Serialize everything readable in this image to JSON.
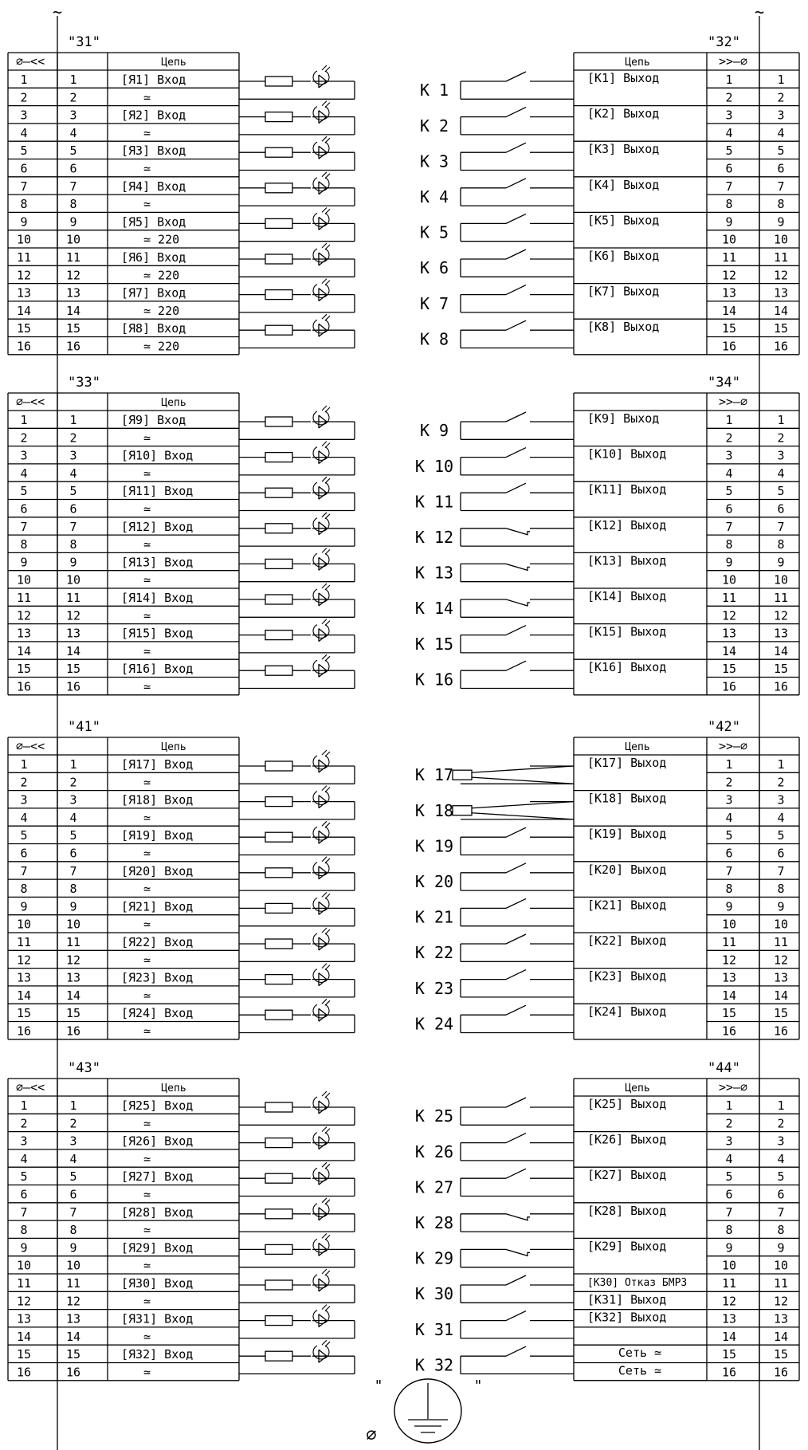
{
  "top_marks": [
    "~",
    "~"
  ],
  "cell_header": "Цепь",
  "left_header_symbol": "∅—<<",
  "right_header_symbol": ">>—∅",
  "ground": {
    "quote_left": "\"",
    "quote_right": "\"",
    "symbol": "∅"
  },
  "sections": [
    {
      "left_connector": "\"31\"",
      "right_connector": "\"32\"",
      "left_has_header_label": true,
      "right_has_header_label": true,
      "left_rows": [
        [
          "1",
          "1",
          "[Я1] Вход"
        ],
        [
          "2",
          "2",
          "≃"
        ],
        [
          "3",
          "3",
          "[Я2] Вход"
        ],
        [
          "4",
          "4",
          "≃"
        ],
        [
          "5",
          "5",
          "[Я3] Вход"
        ],
        [
          "6",
          "6",
          "≃"
        ],
        [
          "7",
          "7",
          "[Я4] Вход"
        ],
        [
          "8",
          "8",
          "≃"
        ],
        [
          "9",
          "9",
          "[Я5] Вход"
        ],
        [
          "10",
          "10",
          "≃ 220"
        ],
        [
          "11",
          "11",
          "[Я6] Вход"
        ],
        [
          "12",
          "12",
          "≃ 220"
        ],
        [
          "13",
          "13",
          "[Я7] Вход"
        ],
        [
          "14",
          "14",
          "≃ 220"
        ],
        [
          "15",
          "15",
          "[Я8] Вход"
        ],
        [
          "16",
          "16",
          "≃ 220"
        ]
      ],
      "right_rows": [
        [
          "[K1] Выход",
          "1",
          "1"
        ],
        [
          "",
          "2",
          "2"
        ],
        [
          "[K2] Выход",
          "3",
          "3"
        ],
        [
          "",
          "4",
          "4"
        ],
        [
          "[K3] Выход",
          "5",
          "5"
        ],
        [
          "",
          "6",
          "6"
        ],
        [
          "[K4] Выход",
          "7",
          "7"
        ],
        [
          "",
          "8",
          "8"
        ],
        [
          "[K5] Выход",
          "9",
          "9"
        ],
        [
          "",
          "10",
          "10"
        ],
        [
          "[K6] Выход",
          "11",
          "11"
        ],
        [
          "",
          "12",
          "12"
        ],
        [
          "[K7] Выход",
          "13",
          "13"
        ],
        [
          "",
          "14",
          "14"
        ],
        [
          "[K8] Выход",
          "15",
          "15"
        ],
        [
          "",
          "16",
          "16"
        ]
      ],
      "relays": [
        {
          "label": "К 1",
          "type": "no"
        },
        {
          "label": "К 2",
          "type": "no"
        },
        {
          "label": "К 3",
          "type": "no"
        },
        {
          "label": "К 4",
          "type": "no"
        },
        {
          "label": "К 5",
          "type": "no"
        },
        {
          "label": "К 6",
          "type": "no"
        },
        {
          "label": "К 7",
          "type": "no"
        },
        {
          "label": "К 8",
          "type": "no"
        }
      ]
    },
    {
      "left_connector": "\"33\"",
      "right_connector": "\"34\"",
      "left_has_header_label": true,
      "right_has_header_label": false,
      "left_rows": [
        [
          "1",
          "1",
          "[Я9] Вход"
        ],
        [
          "2",
          "2",
          "≃"
        ],
        [
          "3",
          "3",
          "[Я10] Вход"
        ],
        [
          "4",
          "4",
          "≃"
        ],
        [
          "5",
          "5",
          "[Я11] Вход"
        ],
        [
          "6",
          "6",
          "≃"
        ],
        [
          "7",
          "7",
          "[Я12] Вход"
        ],
        [
          "8",
          "8",
          "≃"
        ],
        [
          "9",
          "9",
          "[Я13] Вход"
        ],
        [
          "10",
          "10",
          "≃"
        ],
        [
          "11",
          "11",
          "[Я14] Вход"
        ],
        [
          "12",
          "12",
          "≃"
        ],
        [
          "13",
          "13",
          "[Я15] Вход"
        ],
        [
          "14",
          "14",
          "≃"
        ],
        [
          "15",
          "15",
          "[Я16] Вход"
        ],
        [
          "16",
          "16",
          "≃"
        ]
      ],
      "right_rows": [
        [
          "[K9] Выход",
          "1",
          "1"
        ],
        [
          "",
          "2",
          "2"
        ],
        [
          "[K10] Выход",
          "3",
          "3"
        ],
        [
          "",
          "4",
          "4"
        ],
        [
          "[K11] Выход",
          "5",
          "5"
        ],
        [
          "",
          "6",
          "6"
        ],
        [
          "[K12] Выход",
          "7",
          "7"
        ],
        [
          "",
          "8",
          "8"
        ],
        [
          "[K13] Выход",
          "9",
          "9"
        ],
        [
          "",
          "10",
          "10"
        ],
        [
          "[K14] Выход",
          "11",
          "11"
        ],
        [
          "",
          "12",
          "12"
        ],
        [
          "[K15] Выход",
          "13",
          "13"
        ],
        [
          "",
          "14",
          "14"
        ],
        [
          "[K16] Выход",
          "15",
          "15"
        ],
        [
          "",
          "16",
          "16"
        ]
      ],
      "relays": [
        {
          "label": "К 9",
          "type": "no"
        },
        {
          "label": "К 10",
          "type": "no"
        },
        {
          "label": "К 11",
          "type": "no"
        },
        {
          "label": "К 12",
          "type": "nc"
        },
        {
          "label": "К 13",
          "type": "nc"
        },
        {
          "label": "К 14",
          "type": "nc"
        },
        {
          "label": "К 15",
          "type": "no"
        },
        {
          "label": "К 16",
          "type": "no"
        }
      ]
    },
    {
      "left_connector": "\"41\"",
      "right_connector": "\"42\"",
      "left_has_header_label": true,
      "right_has_header_label": true,
      "left_rows": [
        [
          "1",
          "1",
          "[Я17] Вход"
        ],
        [
          "2",
          "2",
          "≃"
        ],
        [
          "3",
          "3",
          "[Я18] Вход"
        ],
        [
          "4",
          "4",
          "≃"
        ],
        [
          "5",
          "5",
          "[Я19] Вход"
        ],
        [
          "6",
          "6",
          "≃"
        ],
        [
          "7",
          "7",
          "[Я20] Вход"
        ],
        [
          "8",
          "8",
          "≃"
        ],
        [
          "9",
          "9",
          "[Я21] Вход"
        ],
        [
          "10",
          "10",
          "≃"
        ],
        [
          "11",
          "11",
          "[Я22] Вход"
        ],
        [
          "12",
          "12",
          "≃"
        ],
        [
          "13",
          "13",
          "[Я23] Вход"
        ],
        [
          "14",
          "14",
          "≃"
        ],
        [
          "15",
          "15",
          "[Я24] Вход"
        ],
        [
          "16",
          "16",
          "≃"
        ]
      ],
      "right_rows": [
        [
          "[K17] Выход",
          "1",
          "1"
        ],
        [
          "",
          "2",
          "2"
        ],
        [
          "[K18] Выход",
          "3",
          "3"
        ],
        [
          "",
          "4",
          "4"
        ],
        [
          "[K19] Выход",
          "5",
          "5"
        ],
        [
          "",
          "6",
          "6"
        ],
        [
          "[K20] Выход",
          "7",
          "7"
        ],
        [
          "",
          "8",
          "8"
        ],
        [
          "[K21] Выход",
          "9",
          "9"
        ],
        [
          "",
          "10",
          "10"
        ],
        [
          "[K22] Выход",
          "11",
          "11"
        ],
        [
          "",
          "12",
          "12"
        ],
        [
          "[K23] Выход",
          "13",
          "13"
        ],
        [
          "",
          "14",
          "14"
        ],
        [
          "[K24] Выход",
          "15",
          "15"
        ],
        [
          "",
          "16",
          "16"
        ]
      ],
      "relays": [
        {
          "label": "К 17",
          "type": "coil"
        },
        {
          "label": "К 18",
          "type": "coil"
        },
        {
          "label": "К 19",
          "type": "no"
        },
        {
          "label": "К 20",
          "type": "no"
        },
        {
          "label": "К 21",
          "type": "no"
        },
        {
          "label": "К 22",
          "type": "no"
        },
        {
          "label": "К 23",
          "type": "no"
        },
        {
          "label": "К 24",
          "type": "no"
        }
      ]
    },
    {
      "left_connector": "\"43\"",
      "right_connector": "\"44\"",
      "left_has_header_label": true,
      "right_has_header_label": true,
      "left_rows": [
        [
          "1",
          "1",
          "[Я25] Вход"
        ],
        [
          "2",
          "2",
          "≃"
        ],
        [
          "3",
          "3",
          "[Я26] Вход"
        ],
        [
          "4",
          "4",
          "≃"
        ],
        [
          "5",
          "5",
          "[Я27] Вход"
        ],
        [
          "6",
          "6",
          "≃"
        ],
        [
          "7",
          "7",
          "[Я28] Вход"
        ],
        [
          "8",
          "8",
          "≃"
        ],
        [
          "9",
          "9",
          "[Я29] Вход"
        ],
        [
          "10",
          "10",
          "≃"
        ],
        [
          "11",
          "11",
          "[Я30] Вход"
        ],
        [
          "12",
          "12",
          "≃"
        ],
        [
          "13",
          "13",
          "[Я31] Вход"
        ],
        [
          "14",
          "14",
          "≃"
        ],
        [
          "15",
          "15",
          "[Я32] Вход"
        ],
        [
          "16",
          "16",
          "≃"
        ]
      ],
      "right_rows": [
        [
          "[K25] Выход",
          "1",
          "1"
        ],
        [
          "",
          "2",
          "2"
        ],
        [
          "[K26] Выход",
          "3",
          "3"
        ],
        [
          "",
          "4",
          "4"
        ],
        [
          "[K27] Выход",
          "5",
          "5"
        ],
        [
          "",
          "6",
          "6"
        ],
        [
          "[K28] Выход",
          "7",
          "7"
        ],
        [
          "",
          "8",
          "8"
        ],
        [
          "[K29] Выход",
          "9",
          "9"
        ],
        [
          "",
          "10",
          "10"
        ],
        [
          "[K30] Отказ БМРЗ",
          "11",
          "11"
        ],
        [
          "[K31] Выход",
          "12",
          "12"
        ],
        [
          "[K32] Выход",
          "13",
          "13"
        ],
        [
          "",
          "14",
          "14"
        ],
        [
          "Сеть ≃",
          "15",
          "15"
        ],
        [
          "Сеть ≃",
          "16",
          "16"
        ]
      ],
      "relays": [
        {
          "label": "К 25",
          "type": "no"
        },
        {
          "label": "К 26",
          "type": "no"
        },
        {
          "label": "К 27",
          "type": "no"
        },
        {
          "label": "К 28",
          "type": "nc"
        },
        {
          "label": "К 29",
          "type": "nc"
        },
        {
          "label": "К 30",
          "type": "no"
        },
        {
          "label": "К 31",
          "type": "no"
        },
        {
          "label": "К 32",
          "type": "no"
        }
      ]
    }
  ]
}
